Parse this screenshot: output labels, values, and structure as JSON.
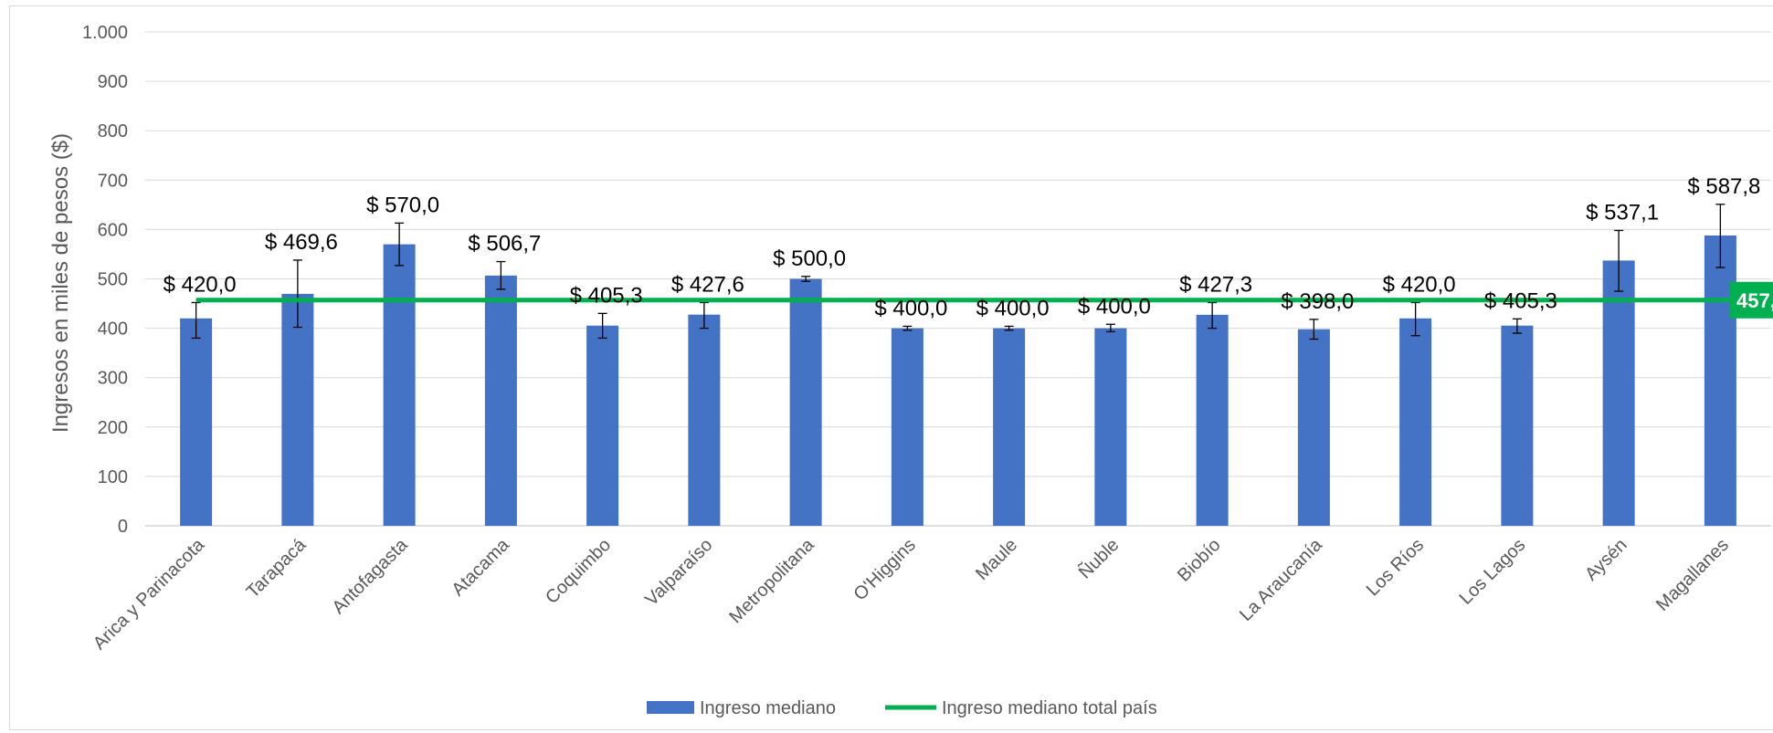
{
  "chart_data": {
    "type": "bar",
    "title": "",
    "xlabel": "",
    "ylabel": "Ingresos en miles de pesos ($)",
    "ylim": [
      0,
      1000
    ],
    "yticks": [
      0,
      100,
      200,
      300,
      400,
      500,
      600,
      700,
      800,
      900,
      1000
    ],
    "ytick_labels": [
      "0",
      "100",
      "200",
      "300",
      "400",
      "500",
      "600",
      "700",
      "800",
      "900",
      "1.000"
    ],
    "grid": true,
    "legend_position": "bottom",
    "categories": [
      "Arica y Parinacota",
      "Tarapacá",
      "Antofagasta",
      "Atacama",
      "Coquimbo",
      "Valparaíso",
      "Metropolitana",
      "O'Higgins",
      "Maule",
      "Ñuble",
      "Biobío",
      "La Araucanía",
      "Los Ríos",
      "Los Lagos",
      "Aysén",
      "Magallanes"
    ],
    "series": [
      {
        "name": "Ingreso mediano",
        "type": "bar",
        "color": "#4472C4",
        "values": [
          420.0,
          469.6,
          570.0,
          506.7,
          405.3,
          427.6,
          500.0,
          400.0,
          400.0,
          400.0,
          427.3,
          398.0,
          420.0,
          405.3,
          537.1,
          587.8
        ],
        "data_labels": [
          "$ 420,0",
          "$ 469,6",
          "$ 570,0",
          "$ 506,7",
          "$ 405,3",
          "$ 427,6",
          "$ 500,0",
          "$ 400,0",
          "$ 400,0",
          "$ 400,0",
          "$ 427,3",
          "$ 398,0",
          "$ 420,0",
          "$ 405,3",
          "$ 537,1",
          "$ 587,8"
        ],
        "error_low": [
          380,
          402,
          527,
          479,
          380,
          400,
          495,
          396,
          396,
          393,
          400,
          378,
          385,
          390,
          475,
          523
        ],
        "error_high": [
          452,
          538,
          613,
          535,
          430,
          452,
          505,
          404,
          404,
          408,
          452,
          418,
          452,
          419,
          598,
          651
        ]
      },
      {
        "name": "Ingreso mediano total país",
        "type": "line",
        "color": "#00B050",
        "value": 457.0,
        "label": "457,"
      }
    ]
  }
}
